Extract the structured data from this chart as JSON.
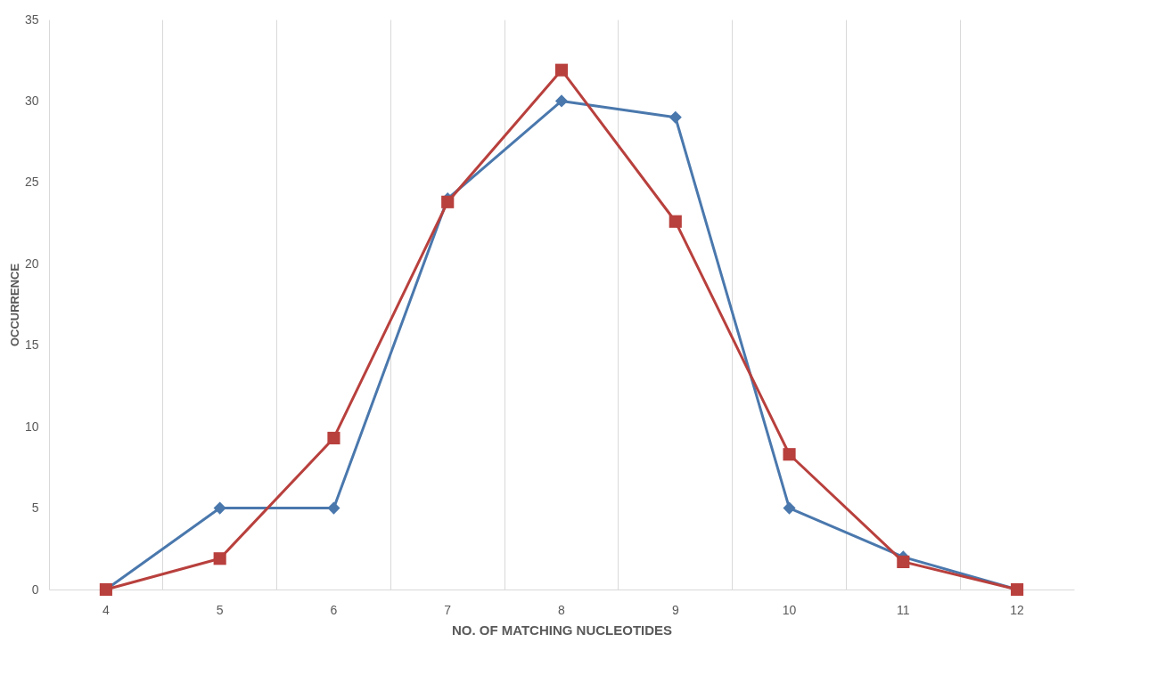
{
  "chart_data": {
    "type": "line",
    "xlabel": "NO. OF MATCHING NUCLEOTIDES",
    "ylabel": "OCCURRENCE",
    "categories": [
      "4",
      "5",
      "6",
      "7",
      "8",
      "9",
      "10",
      "11",
      "12"
    ],
    "series": [
      {
        "color": "#4a78ad",
        "marker": "diamond",
        "values": [
          0,
          5,
          5,
          24,
          30,
          29,
          5,
          2,
          0
        ]
      },
      {
        "color": "#b8403d",
        "marker": "square",
        "values": [
          0,
          1.9,
          9.3,
          23.8,
          31.9,
          22.6,
          8.3,
          1.7,
          0
        ]
      }
    ],
    "ylim": [
      0,
      35
    ],
    "yticks": [
      0,
      5,
      10,
      15,
      20,
      25,
      30,
      35
    ],
    "grid": "x",
    "legend": false,
    "line_style": "solid"
  }
}
